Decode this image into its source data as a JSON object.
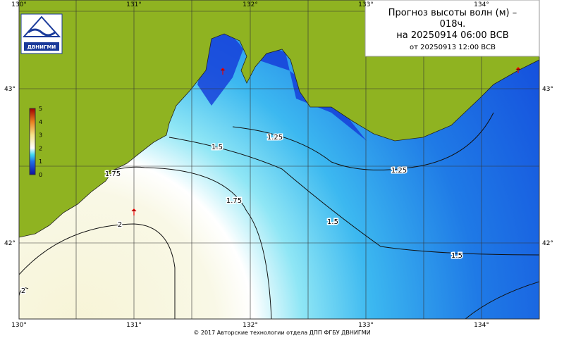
{
  "header": {
    "title_lines": [
      "Прогноз высоты волн (м) –",
      "018ч.",
      "на 20250914 06:00 ВСВ",
      "от 20250913 12:00 ВСВ"
    ]
  },
  "logo": {
    "text": "ДВНИГМИ"
  },
  "axes": {
    "lon_labels": [
      "130°",
      "131°",
      "132°",
      "133°",
      "134°"
    ],
    "lat_labels": [
      "43°",
      "42°"
    ]
  },
  "colorbar": {
    "labels": [
      0,
      1,
      2,
      3,
      4,
      5
    ]
  },
  "contour_labels": [
    "2",
    "2",
    "1.75",
    "1.75",
    "1.5",
    "1.5",
    "1.5",
    "1.25",
    "1.25"
  ],
  "footer": "© 2017 Авторские технологии отдела ДПП ФГБУ ДВНИГМИ"
}
